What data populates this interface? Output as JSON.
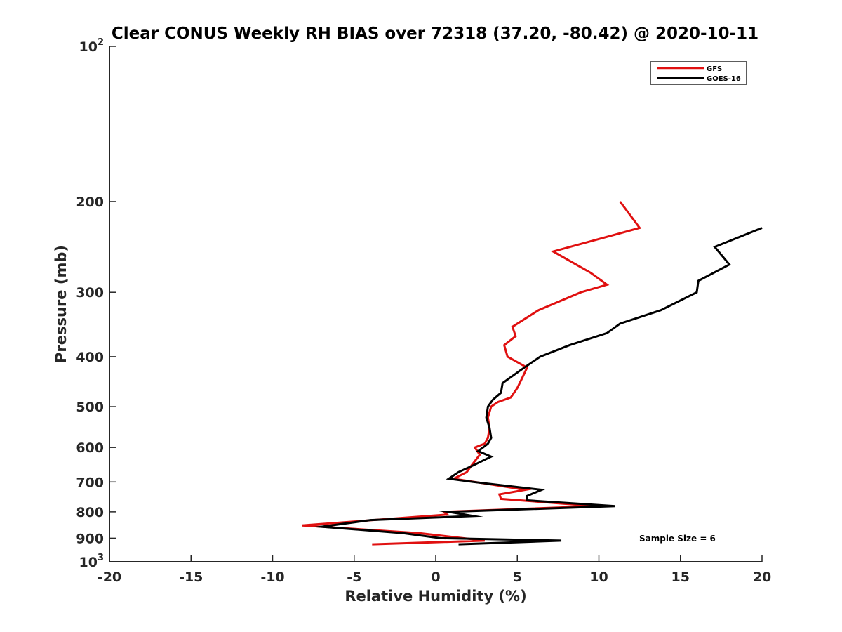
{
  "chart_data": {
    "type": "line",
    "title": "Clear CONUS Weekly RH BIAS over 72318 (37.20, -80.42) @ 2020-10-11",
    "xlabel": "Relative Humidity (%)",
    "ylabel": "Pressure (mb)",
    "xlim": [
      -20,
      20
    ],
    "ylim": [
      100,
      1000
    ],
    "y_scale": "log",
    "y_reversed": true,
    "x_ticks": [
      "-20",
      "-15",
      "-10",
      "-5",
      "0",
      "5",
      "10",
      "15",
      "20"
    ],
    "y_ticks": [
      {
        "value": 100,
        "base": "10",
        "exp": "2"
      },
      {
        "value": 200,
        "label": "200"
      },
      {
        "value": 300,
        "label": "300"
      },
      {
        "value": 400,
        "label": "400"
      },
      {
        "value": 500,
        "label": "500"
      },
      {
        "value": 600,
        "label": "600"
      },
      {
        "value": 700,
        "label": "700"
      },
      {
        "value": 800,
        "label": "800"
      },
      {
        "value": 900,
        "label": "900"
      },
      {
        "value": 1000,
        "base": "10",
        "exp": "3"
      }
    ],
    "grid": false,
    "legend_position": "top-right",
    "annotation": "Sample Size = 6",
    "series": [
      {
        "name": "GFS",
        "color": "#e01010",
        "points": [
          [
            11.3,
            200
          ],
          [
            12.5,
            225
          ],
          [
            7.2,
            250
          ],
          [
            9.5,
            275
          ],
          [
            10.5,
            290
          ],
          [
            8.9,
            300
          ],
          [
            6.3,
            325
          ],
          [
            4.7,
            350
          ],
          [
            4.9,
            365
          ],
          [
            4.2,
            380
          ],
          [
            4.4,
            400
          ],
          [
            5.6,
            420
          ],
          [
            5.3,
            440
          ],
          [
            5.0,
            460
          ],
          [
            4.6,
            480
          ],
          [
            3.8,
            490
          ],
          [
            3.4,
            500
          ],
          [
            3.2,
            525
          ],
          [
            3.3,
            550
          ],
          [
            3.2,
            575
          ],
          [
            3.0,
            590
          ],
          [
            2.4,
            600
          ],
          [
            2.7,
            620
          ],
          [
            2.2,
            650
          ],
          [
            1.9,
            670
          ],
          [
            1.1,
            690
          ],
          [
            2.4,
            700
          ],
          [
            5.5,
            725
          ],
          [
            3.9,
            740
          ],
          [
            4.0,
            755
          ],
          [
            9.8,
            780
          ],
          [
            0.5,
            800
          ],
          [
            0.7,
            810
          ],
          [
            -8.2,
            850
          ],
          [
            -1.0,
            880
          ],
          [
            3.0,
            910
          ],
          [
            -3.9,
            925
          ]
        ]
      },
      {
        "name": "GOES-16",
        "color": "#000000",
        "points": [
          [
            20.0,
            225
          ],
          [
            17.1,
            245
          ],
          [
            18.0,
            265
          ],
          [
            16.1,
            285
          ],
          [
            16.0,
            300
          ],
          [
            13.8,
            325
          ],
          [
            11.3,
            345
          ],
          [
            10.5,
            360
          ],
          [
            8.2,
            380
          ],
          [
            6.4,
            400
          ],
          [
            5.2,
            425
          ],
          [
            4.1,
            450
          ],
          [
            4.0,
            470
          ],
          [
            3.5,
            485
          ],
          [
            3.2,
            500
          ],
          [
            3.1,
            525
          ],
          [
            3.3,
            550
          ],
          [
            3.4,
            575
          ],
          [
            3.2,
            590
          ],
          [
            2.6,
            610
          ],
          [
            3.4,
            625
          ],
          [
            2.3,
            650
          ],
          [
            1.4,
            670
          ],
          [
            0.8,
            690
          ],
          [
            2.3,
            700
          ],
          [
            6.5,
            725
          ],
          [
            5.6,
            745
          ],
          [
            5.6,
            760
          ],
          [
            11.0,
            780
          ],
          [
            0.8,
            800
          ],
          [
            2.3,
            815
          ],
          [
            -4.0,
            830
          ],
          [
            -7.0,
            855
          ],
          [
            -2.0,
            880
          ],
          [
            0.3,
            900
          ],
          [
            7.7,
            910
          ],
          [
            1.4,
            925
          ]
        ]
      }
    ]
  }
}
